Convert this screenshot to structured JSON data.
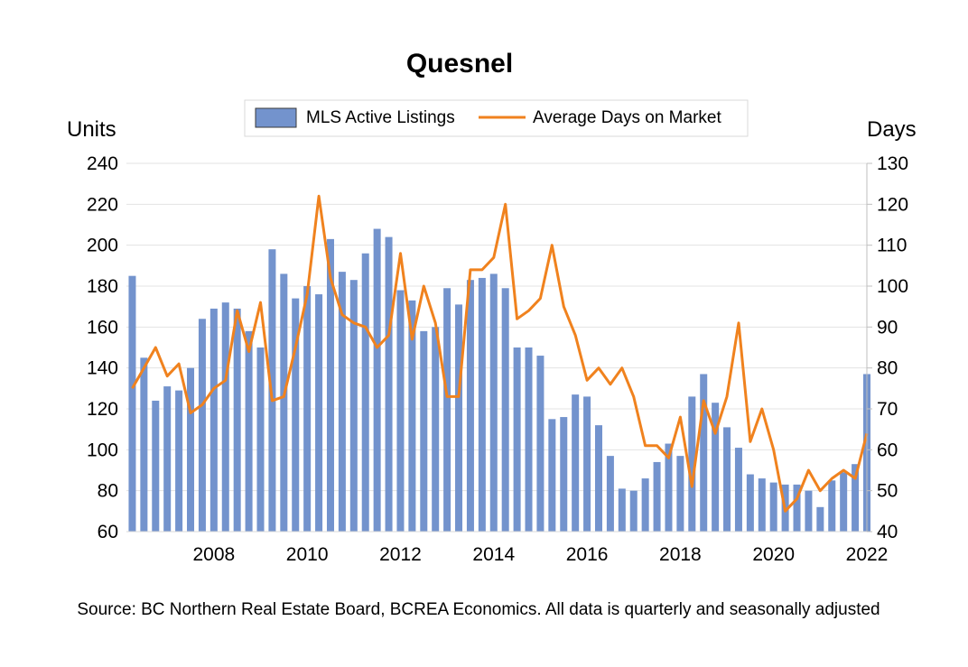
{
  "chart_data": {
    "type": "bar+line",
    "title": "Quesnel",
    "source": "Source: BC Northern Real Estate Board, BCREA Economics. All data is quarterly and seasonally adjusted",
    "y_left_label": "Units",
    "y_right_label": "Days",
    "y_left_range": [
      60,
      240
    ],
    "y_right_range": [
      40,
      130
    ],
    "y_left_ticks": [
      "60",
      "80",
      "100",
      "120",
      "140",
      "160",
      "180",
      "200",
      "220",
      "240"
    ],
    "y_right_ticks": [
      "40",
      "50",
      "60",
      "70",
      "80",
      "90",
      "100",
      "110",
      "120",
      "130"
    ],
    "x_range": [
      2006.625,
      2022.5
    ],
    "x_ticks": [
      "2008",
      "2010",
      "2012",
      "2014",
      "2016",
      "2018",
      "2020",
      "2022"
    ],
    "grid": "horizontal",
    "legend_position": "top-center",
    "legend": [
      "MLS Active Listings",
      "Average Days on Market"
    ],
    "colors": {
      "bars": "#7393cd",
      "line": "#f0821e"
    },
    "x": [
      "2006Q4",
      "2007Q1",
      "2007Q2",
      "2007Q3",
      "2007Q4",
      "2008Q1",
      "2008Q2",
      "2008Q3",
      "2008Q4",
      "2009Q1",
      "2009Q2",
      "2009Q3",
      "2009Q4",
      "2010Q1",
      "2010Q2",
      "2010Q3",
      "2010Q4",
      "2011Q1",
      "2011Q2",
      "2011Q3",
      "2011Q4",
      "2012Q1",
      "2012Q2",
      "2012Q3",
      "2012Q4",
      "2013Q1",
      "2013Q2",
      "2013Q3",
      "2013Q4",
      "2014Q1",
      "2014Q2",
      "2014Q3",
      "2014Q4",
      "2015Q1",
      "2015Q2",
      "2015Q3",
      "2015Q4",
      "2016Q1",
      "2016Q2",
      "2016Q3",
      "2016Q4",
      "2017Q1",
      "2017Q2",
      "2017Q3",
      "2017Q4",
      "2018Q1",
      "2018Q2",
      "2018Q3",
      "2018Q4",
      "2019Q1",
      "2019Q2",
      "2019Q3",
      "2019Q4",
      "2020Q1",
      "2020Q2",
      "2020Q3",
      "2020Q4",
      "2021Q1",
      "2021Q2",
      "2021Q3",
      "2021Q4",
      "2022Q1",
      "2022Q2",
      "2022Q3"
    ],
    "series": [
      {
        "name": "MLS Active Listings",
        "axis": "left",
        "type": "bar",
        "values": [
          185,
          145,
          124,
          131,
          129,
          140,
          164,
          169,
          172,
          169,
          158,
          150,
          198,
          186,
          174,
          180,
          176,
          203,
          187,
          183,
          196,
          208,
          204,
          178,
          173,
          158,
          160,
          179,
          171,
          183,
          184,
          186,
          179,
          150,
          150,
          146,
          115,
          116,
          127,
          126,
          112,
          97,
          81,
          80,
          86,
          94,
          103,
          97,
          126,
          137,
          123,
          111,
          101,
          88,
          86,
          84,
          83,
          83,
          80,
          72,
          85,
          89,
          93,
          137
        ]
      },
      {
        "name": "Average Days on Market",
        "axis": "right",
        "type": "line",
        "values": [
          75,
          80,
          85,
          78,
          81,
          69,
          71,
          75,
          77,
          94,
          84,
          96,
          72,
          73,
          85,
          98,
          122,
          102,
          93,
          91,
          90,
          85,
          88,
          108,
          87,
          100,
          91,
          73,
          73,
          104,
          104,
          107,
          120,
          92,
          94,
          97,
          110,
          95,
          88,
          77,
          80,
          76,
          80,
          73,
          61,
          61,
          58,
          68,
          51,
          72,
          64,
          73,
          91,
          62,
          70,
          60,
          45,
          48,
          55,
          50,
          53,
          55,
          53,
          64
        ]
      }
    ]
  }
}
